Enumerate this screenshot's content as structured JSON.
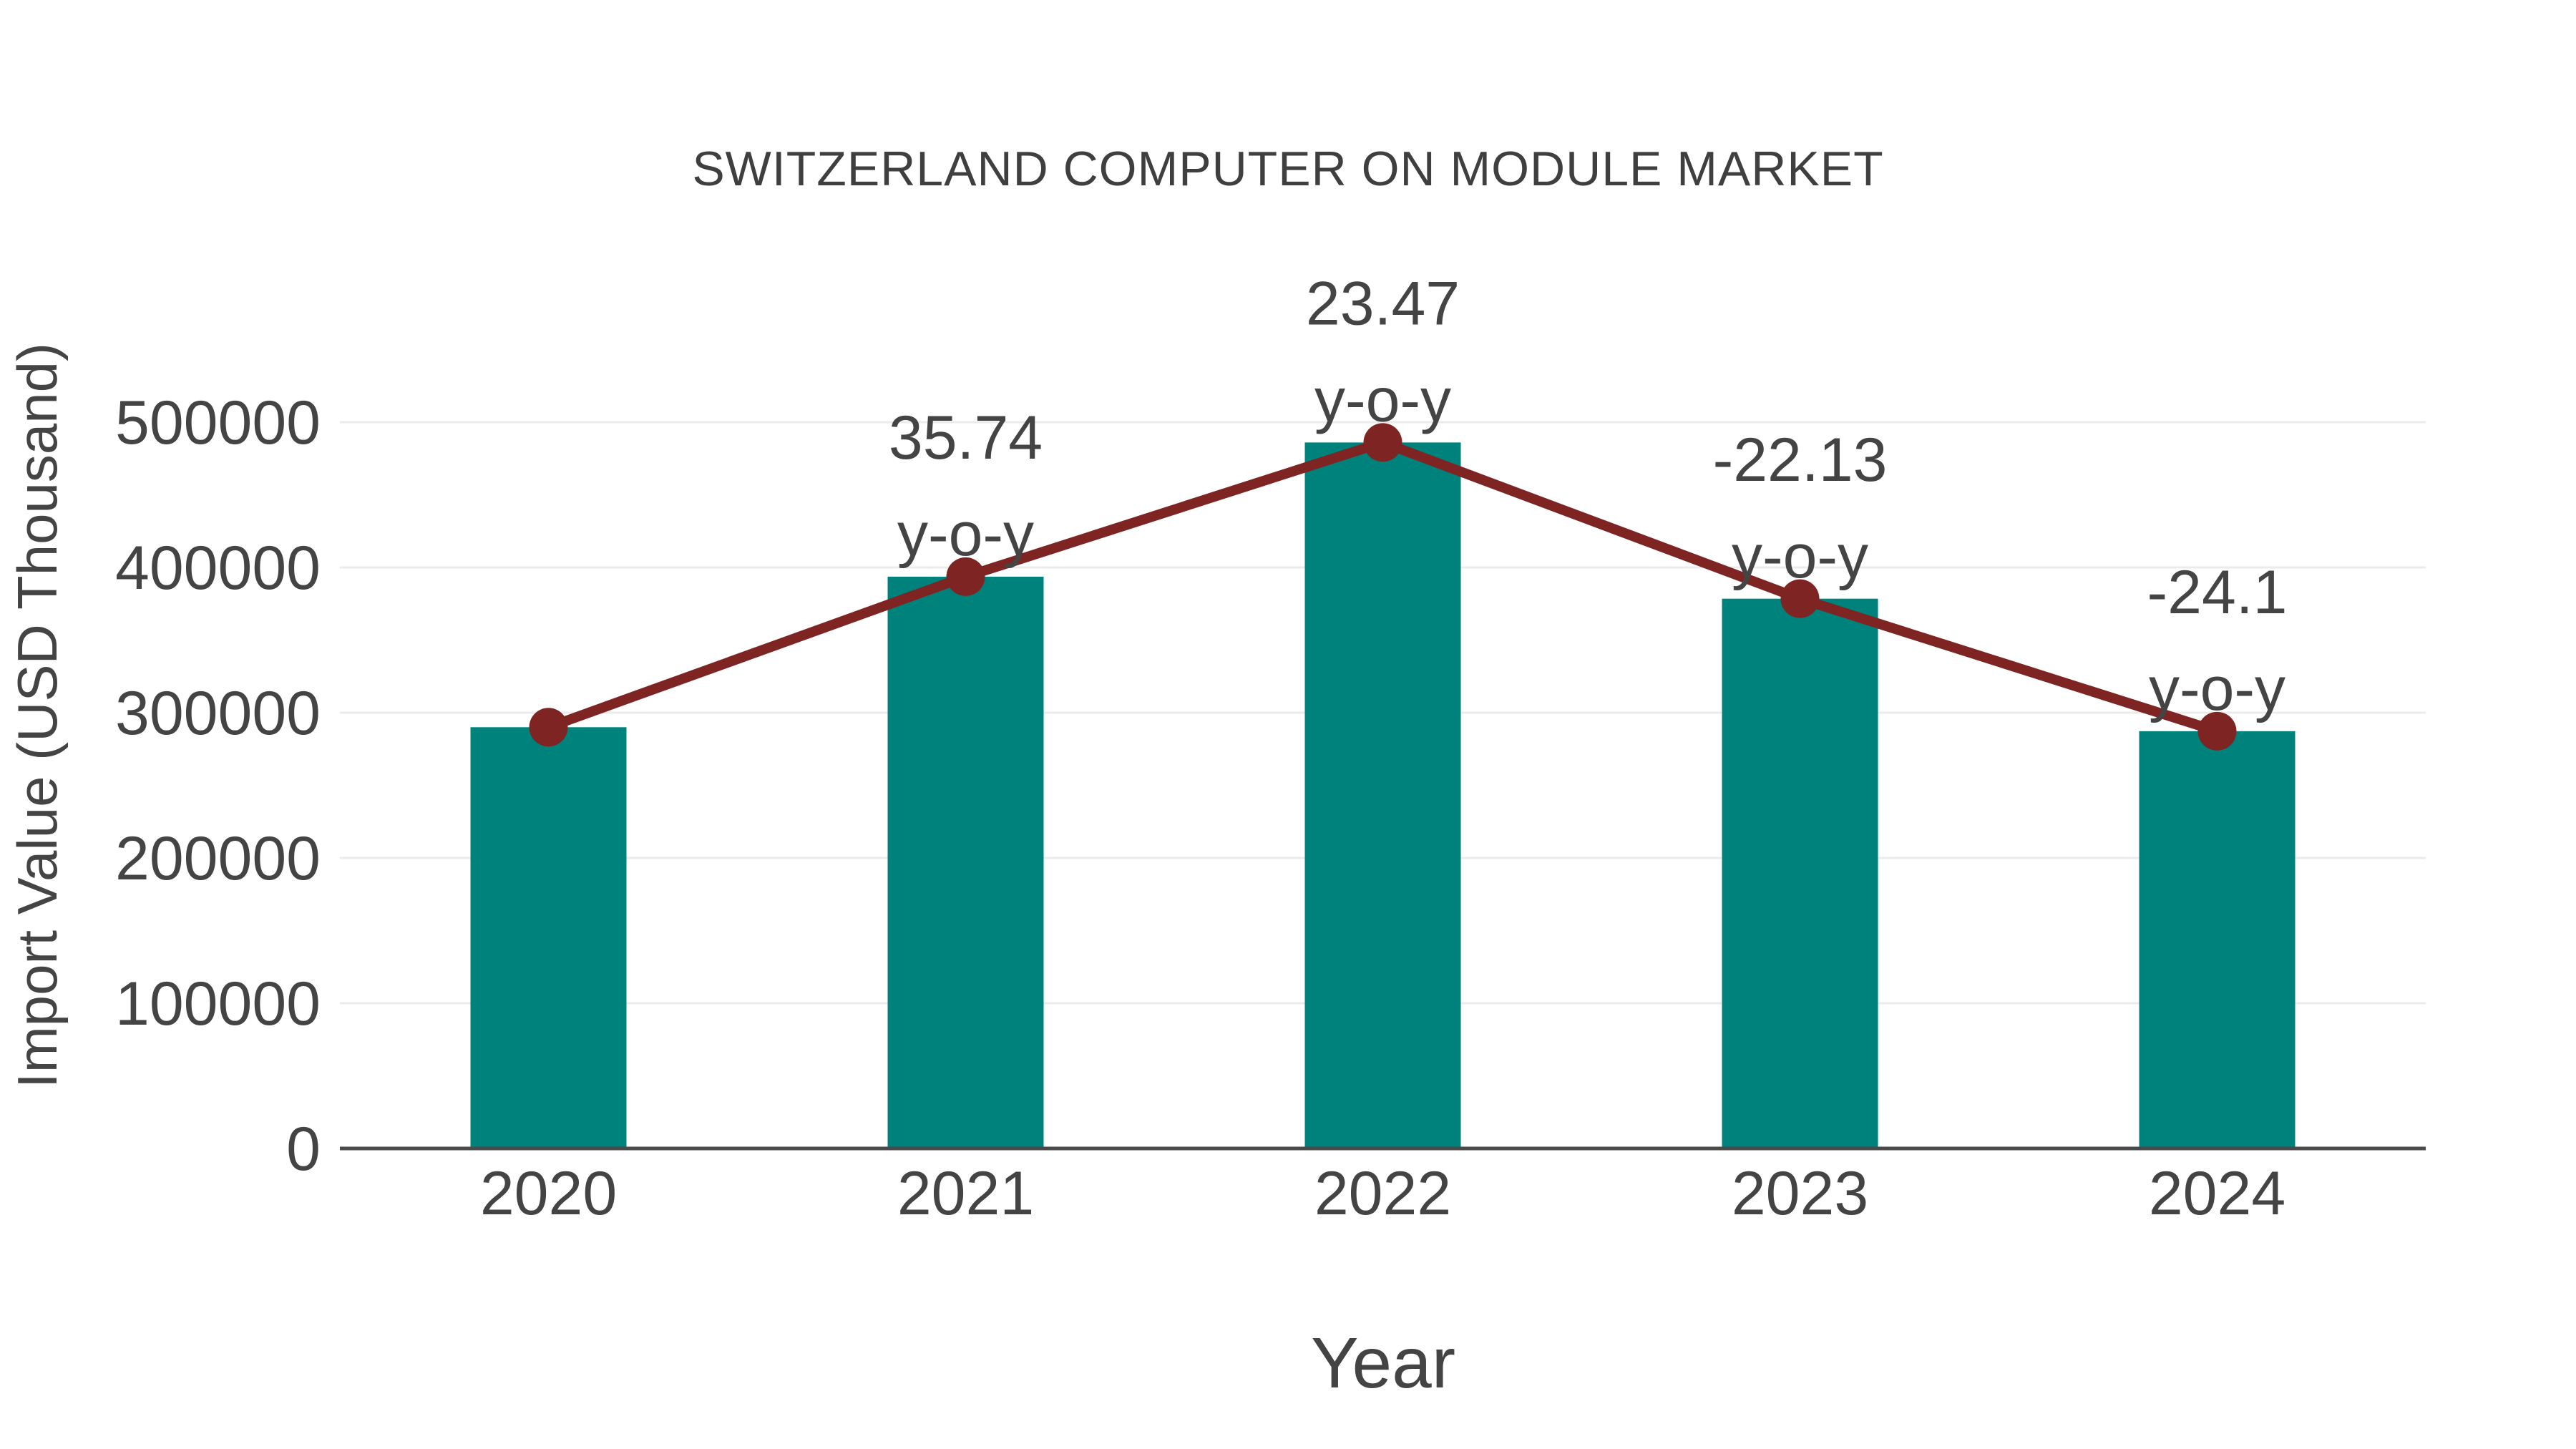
{
  "figure": {
    "title": "SWITZERLAND COMPUTER ON MODULE MARKET",
    "x_axis_title": "Year",
    "y_axis_title": "Import Value (USD Thousand)"
  },
  "chart_data": {
    "type": "bar",
    "title": "SWITZERLAND COMPUTER ON MODULE MARKET",
    "xlabel": "Year",
    "ylabel": "Import Value (USD Thousand)",
    "categories": [
      "2020",
      "2021",
      "2022",
      "2023",
      "2024"
    ],
    "series": [
      {
        "name": "Import Value (USD Thousand)",
        "type": "bar",
        "color": "#00827c",
        "values": [
          290000,
          393650,
          486030,
          378480,
          287260
        ]
      },
      {
        "name": "y-o-y change (%)",
        "type": "line",
        "color": "#7e2423",
        "anchored_to": "bar_tops",
        "values": [
          null,
          35.74,
          23.47,
          -22.13,
          -24.1
        ]
      }
    ],
    "annotations": [
      {
        "category": "2021",
        "line1": "35.74",
        "line2": "y-o-y"
      },
      {
        "category": "2022",
        "line1": "23.47",
        "line2": "y-o-y"
      },
      {
        "category": "2023",
        "line1": "-22.13",
        "line2": "y-o-y"
      },
      {
        "category": "2024",
        "line1": "-24.1",
        "line2": "y-o-y"
      }
    ],
    "yticks": [
      0,
      100000,
      200000,
      300000,
      400000,
      500000
    ],
    "ylim": [
      0,
      591000
    ],
    "grid": true,
    "legend_position": "none",
    "colors": {
      "bar": "#00827c",
      "line": "#7e2423",
      "marker": "#7e2423",
      "text": "#444444",
      "grid": "#ebebeb",
      "axis_line": "#4a4a4a",
      "background": "#ffffff"
    }
  }
}
